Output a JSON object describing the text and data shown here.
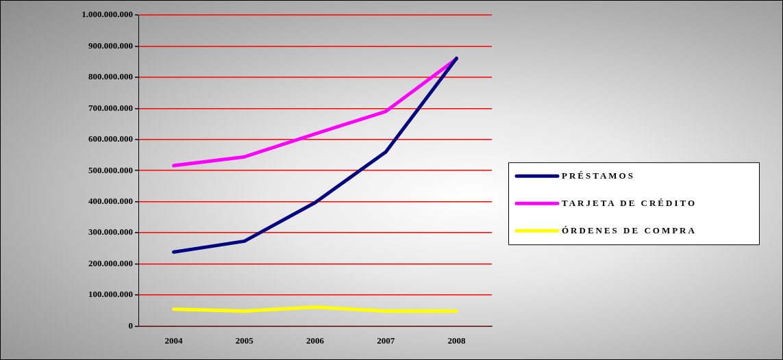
{
  "chart_data": {
    "type": "line",
    "categories": [
      "2004",
      "2005",
      "2006",
      "2007",
      "2008"
    ],
    "series": [
      {
        "name": "PRÉSTAMOS",
        "color": "#000080",
        "values": [
          238000000,
          273000000,
          397000000,
          560000000,
          861000000
        ]
      },
      {
        "name": "TARJETA DE CRÉDITO",
        "color": "#ff00ff",
        "values": [
          516000000,
          544000000,
          618000000,
          690000000,
          859000000
        ]
      },
      {
        "name": "ÓRDENES DE COMPRA",
        "color": "#ffff00",
        "values": [
          54000000,
          48000000,
          61000000,
          48000000,
          48000000
        ]
      }
    ],
    "ylim": [
      0,
      1000000000
    ],
    "yticks": [
      {
        "value": 0,
        "label": "0"
      },
      {
        "value": 100000000,
        "label": "100.000.000"
      },
      {
        "value": 200000000,
        "label": "200.000.000"
      },
      {
        "value": 300000000,
        "label": "300.000.000"
      },
      {
        "value": 400000000,
        "label": "400.000.000"
      },
      {
        "value": 500000000,
        "label": "500.000.000"
      },
      {
        "value": 600000000,
        "label": "600.000.000"
      },
      {
        "value": 700000000,
        "label": "700.000.000"
      },
      {
        "value": 800000000,
        "label": "800.000.000"
      },
      {
        "value": 900000000,
        "label": "900.000.000"
      },
      {
        "value": 1000000000,
        "label": "1.000.000.000"
      }
    ],
    "grid": "y",
    "legend": "right",
    "marker": "none",
    "line_style": "solid"
  }
}
